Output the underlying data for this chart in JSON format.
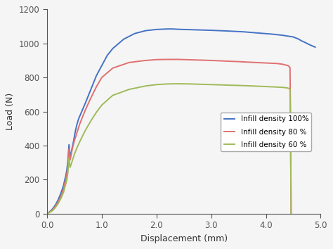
{
  "title": "",
  "xlabel": "Displacement (mm)",
  "ylabel": "Load (N)",
  "xlim": [
    0.0,
    5.0
  ],
  "ylim": [
    0,
    1200
  ],
  "xticks": [
    0.0,
    1.0,
    2.0,
    3.0,
    4.0,
    5.0
  ],
  "yticks": [
    0,
    200,
    400,
    600,
    800,
    1000,
    1200
  ],
  "legend": [
    {
      "label": "Infill density 100%",
      "color": "#4472c4"
    },
    {
      "label": "Infill density 80 %",
      "color": "#e07070"
    },
    {
      "label": "Infill density 60 %",
      "color": "#9fba59"
    }
  ],
  "curve100": {
    "color": "#4472c4",
    "x": [
      0.0,
      0.05,
      0.1,
      0.15,
      0.2,
      0.25,
      0.3,
      0.32,
      0.34,
      0.36,
      0.38,
      0.4,
      0.42,
      0.44,
      0.46,
      0.48,
      0.5,
      0.52,
      0.55,
      0.58,
      0.62,
      0.66,
      0.7,
      0.8,
      0.9,
      1.0,
      1.1,
      1.2,
      1.4,
      1.6,
      1.8,
      2.0,
      2.2,
      2.3,
      2.4,
      2.5,
      2.7,
      3.0,
      3.3,
      3.6,
      3.9,
      4.1,
      4.3,
      4.5,
      4.6,
      4.65,
      4.7,
      4.75,
      4.8,
      4.85,
      4.9
    ],
    "y": [
      0,
      12,
      28,
      50,
      80,
      118,
      165,
      195,
      220,
      255,
      310,
      405,
      330,
      360,
      390,
      420,
      455,
      490,
      530,
      560,
      590,
      620,
      650,
      730,
      810,
      870,
      930,
      970,
      1025,
      1058,
      1075,
      1082,
      1085,
      1085,
      1083,
      1082,
      1080,
      1077,
      1073,
      1068,
      1060,
      1055,
      1048,
      1038,
      1025,
      1015,
      1008,
      1000,
      992,
      985,
      978
    ]
  },
  "curve80": {
    "color": "#e07070",
    "x": [
      0.0,
      0.05,
      0.1,
      0.15,
      0.2,
      0.25,
      0.3,
      0.32,
      0.34,
      0.36,
      0.38,
      0.4,
      0.42,
      0.44,
      0.46,
      0.5,
      0.55,
      0.6,
      0.7,
      0.8,
      0.9,
      1.0,
      1.2,
      1.5,
      1.8,
      2.0,
      2.2,
      2.4,
      2.6,
      2.8,
      3.0,
      3.2,
      3.5,
      3.8,
      4.0,
      4.2,
      4.3,
      4.4,
      4.42,
      4.44,
      4.448,
      4.456,
      4.46
    ],
    "y": [
      0,
      10,
      22,
      42,
      68,
      100,
      145,
      175,
      200,
      230,
      280,
      380,
      315,
      345,
      380,
      430,
      480,
      530,
      610,
      680,
      745,
      800,
      855,
      888,
      900,
      905,
      906,
      906,
      904,
      902,
      900,
      897,
      893,
      888,
      885,
      882,
      878,
      870,
      865,
      858,
      600,
      200,
      0
    ]
  },
  "curve60": {
    "color": "#9fba59",
    "x": [
      0.0,
      0.05,
      0.1,
      0.15,
      0.2,
      0.25,
      0.3,
      0.32,
      0.34,
      0.36,
      0.38,
      0.4,
      0.42,
      0.45,
      0.5,
      0.55,
      0.6,
      0.7,
      0.8,
      0.9,
      1.0,
      1.2,
      1.5,
      1.8,
      2.0,
      2.2,
      2.4,
      2.6,
      2.8,
      3.0,
      3.3,
      3.6,
      3.9,
      4.1,
      4.3,
      4.4,
      4.42,
      4.44,
      4.448,
      4.456,
      4.46
    ],
    "y": [
      0,
      8,
      18,
      35,
      58,
      88,
      125,
      150,
      172,
      198,
      240,
      328,
      272,
      300,
      350,
      390,
      425,
      490,
      545,
      595,
      638,
      695,
      730,
      750,
      758,
      762,
      763,
      762,
      760,
      758,
      755,
      752,
      748,
      745,
      742,
      738,
      735,
      730,
      500,
      200,
      0
    ]
  }
}
